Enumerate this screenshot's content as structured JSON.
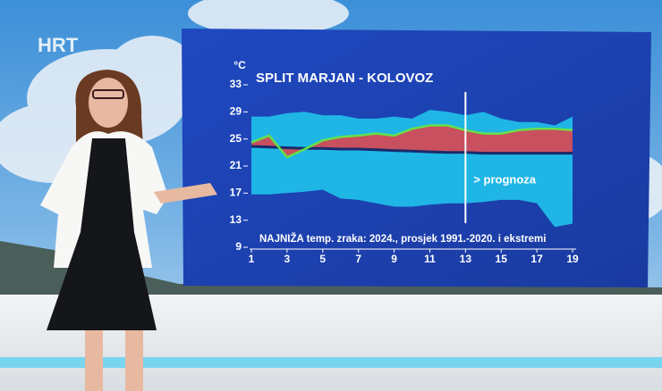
{
  "chart_data": {
    "type": "range_area",
    "logo": "HRT",
    "title": "SPLIT MARJAN - KOLOVOZ",
    "y_unit": "°C",
    "subtitle": "NAJNIŽA temp. zraka: 2024., prosjek 1991.-2020. i ekstremi",
    "annotation": "> prognoza",
    "forecast_start": 13,
    "x": [
      1,
      2,
      3,
      4,
      5,
      6,
      7,
      8,
      9,
      10,
      11,
      12,
      13,
      14,
      15,
      16,
      17,
      18,
      19
    ],
    "extreme_max": [
      28.3,
      28.3,
      28.8,
      29,
      28.5,
      28.5,
      28,
      28,
      28.3,
      28,
      29.3,
      29,
      28.5,
      29,
      28,
      27.5,
      27.5,
      27,
      28.3
    ],
    "extreme_min": [
      16.8,
      16.8,
      17,
      17.2,
      17.5,
      16.2,
      16,
      15.5,
      15,
      15,
      15.3,
      15.5,
      15.5,
      15.7,
      16,
      16,
      15.5,
      12,
      12.5
    ],
    "average": [
      23.9,
      23.8,
      23.7,
      23.6,
      23.6,
      23.5,
      23.5,
      23.4,
      23.3,
      23.2,
      23.1,
      23,
      23,
      22.9,
      22.9,
      22.9,
      22.9,
      22.9,
      22.9
    ],
    "year_2024": [
      24.5,
      25.5,
      22.3,
      23.5,
      24.8,
      25.3,
      25.5,
      25.8,
      25.5,
      26.5,
      27,
      27,
      26.3,
      25.8,
      25.8,
      26.3,
      26.5,
      26.5,
      26.3
    ],
    "colors": {
      "extremes": "#1fb6e6",
      "anomaly": "#c9505e",
      "average": "#1a2a6a",
      "year_2024": "#66e04a",
      "panel": "#1e46b8"
    },
    "xlim": [
      1,
      19
    ],
    "xticks": [
      1,
      3,
      5,
      7,
      9,
      11,
      13,
      15,
      17,
      19
    ],
    "ylim": [
      9,
      33
    ],
    "yticks": [
      9,
      13,
      17,
      21,
      25,
      29,
      33
    ]
  }
}
